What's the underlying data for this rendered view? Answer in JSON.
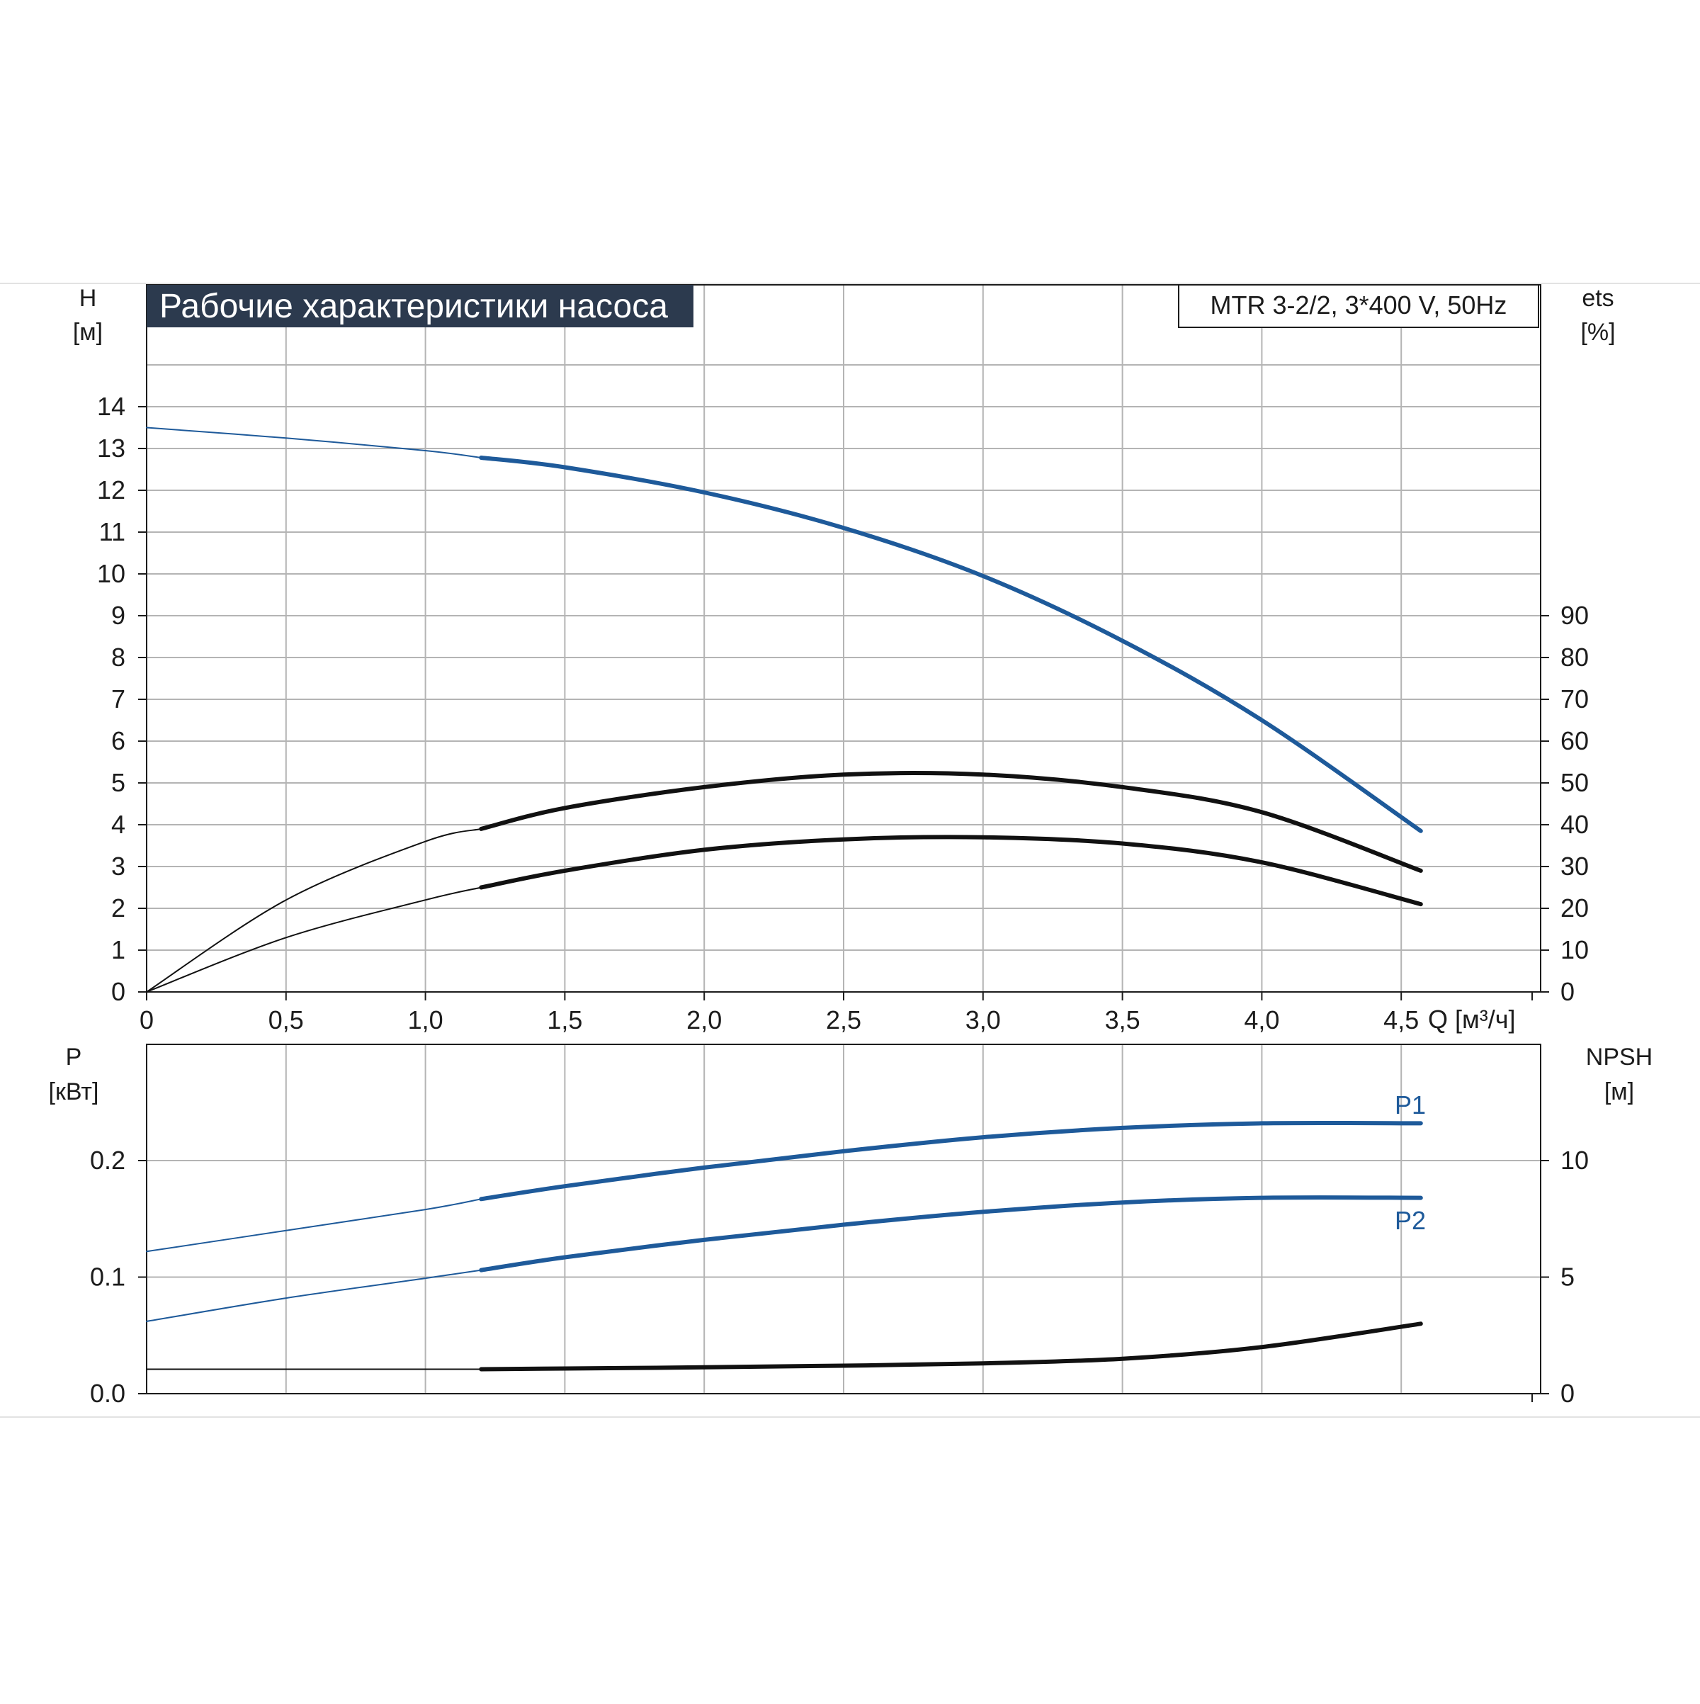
{
  "banner": {
    "title": "Рабочие характеристики насоса",
    "model": "MTR 3-2/2, 3*400 V, 50Hz"
  },
  "colors": {
    "blue": "#1e5a9a",
    "black": "#111111",
    "banner_bg": "#2c3a4e"
  },
  "chart_data": [
    {
      "type": "line",
      "title": "Рабочие характеристики насоса",
      "xlabel": "Q [м³/ч]",
      "x_ticks": [
        "0",
        "0,5",
        "1,0",
        "1,5",
        "2,0",
        "2,5",
        "3,0",
        "3,5",
        "4,0",
        "4,5"
      ],
      "xlim": [
        0,
        5.0
      ],
      "left_axis": {
        "label": "H",
        "unit": "[м]",
        "ylim": [
          0,
          14
        ],
        "ticks": [
          "0",
          "1",
          "2",
          "3",
          "4",
          "5",
          "6",
          "7",
          "8",
          "9",
          "10",
          "11",
          "12",
          "13",
          "14"
        ]
      },
      "right_axis": {
        "label": "ets",
        "unit": "[%]",
        "ylim": [
          0,
          90
        ],
        "ticks": [
          "0",
          "10",
          "20",
          "30",
          "40",
          "50",
          "60",
          "70",
          "80",
          "90"
        ]
      },
      "grid": true,
      "series": [
        {
          "axis": "left",
          "color": "#1e5a9a",
          "duty_from": 1.2,
          "x": [
            0,
            0.5,
            1.0,
            1.2,
            1.5,
            2.0,
            2.5,
            3.0,
            3.5,
            4.0,
            4.57
          ],
          "y": [
            13.5,
            13.25,
            12.95,
            12.78,
            12.55,
            11.95,
            11.1,
            9.95,
            8.4,
            6.5,
            3.85
          ]
        },
        {
          "axis": "right",
          "color": "#111111",
          "duty_from": 1.2,
          "x": [
            0,
            0.5,
            1.0,
            1.2,
            1.5,
            2.0,
            2.5,
            3.0,
            3.5,
            4.0,
            4.57
          ],
          "y": [
            0,
            22,
            36,
            39,
            44,
            49,
            52,
            52,
            49,
            43,
            29
          ]
        },
        {
          "axis": "right",
          "color": "#111111",
          "duty_from": 1.2,
          "x": [
            0,
            0.5,
            1.0,
            1.2,
            1.5,
            2.0,
            2.5,
            3.0,
            3.5,
            4.0,
            4.57
          ],
          "y": [
            0,
            13,
            22,
            25,
            29,
            34,
            36.5,
            37,
            35.5,
            31,
            21
          ]
        }
      ]
    },
    {
      "type": "line",
      "xlim": [
        0,
        5.0
      ],
      "left_axis": {
        "label": "P",
        "unit": "[кВт]",
        "ylim": [
          0,
          0.3
        ],
        "ticks": [
          "0.0",
          "0.1",
          "0.2"
        ],
        "tick_values": [
          0,
          0.1,
          0.2
        ]
      },
      "right_axis": {
        "label": "NPSH",
        "unit": "[м]",
        "ylim": [
          0,
          15
        ],
        "ticks": [
          "0",
          "5",
          "10"
        ],
        "tick_values": [
          0,
          5,
          10
        ]
      },
      "grid": true,
      "series": [
        {
          "name": "P1",
          "axis": "left",
          "color": "#1e5a9a",
          "duty_from": 1.2,
          "x": [
            0,
            0.5,
            1.0,
            1.2,
            1.5,
            2.0,
            2.5,
            3.0,
            3.5,
            4.0,
            4.57
          ],
          "y": [
            0.122,
            0.14,
            0.158,
            0.167,
            0.178,
            0.194,
            0.208,
            0.22,
            0.228,
            0.232,
            0.232
          ]
        },
        {
          "name": "P2",
          "axis": "left",
          "color": "#1e5a9a",
          "duty_from": 1.2,
          "x": [
            0,
            0.5,
            1.0,
            1.2,
            1.5,
            2.0,
            2.5,
            3.0,
            3.5,
            4.0,
            4.57
          ],
          "y": [
            0.062,
            0.082,
            0.099,
            0.106,
            0.117,
            0.132,
            0.145,
            0.156,
            0.164,
            0.168,
            0.168
          ]
        },
        {
          "axis": "right",
          "color": "#111111",
          "duty_from": 1.2,
          "x": [
            0,
            0.5,
            1.0,
            1.2,
            1.5,
            2.0,
            2.5,
            3.0,
            3.5,
            4.0,
            4.57
          ],
          "y": [
            1.05,
            1.05,
            1.05,
            1.05,
            1.08,
            1.13,
            1.2,
            1.3,
            1.5,
            2.0,
            3.0
          ]
        }
      ]
    }
  ]
}
